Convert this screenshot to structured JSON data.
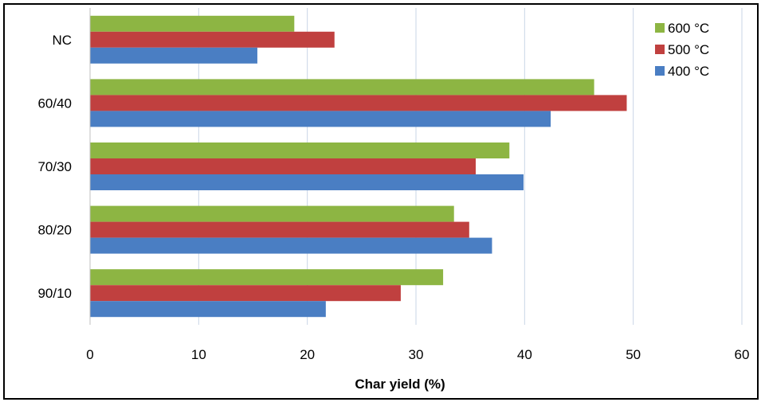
{
  "chart_data": {
    "type": "bar",
    "orientation": "horizontal",
    "categories": [
      "NC",
      "60/40",
      "70/30",
      "80/20",
      "90/10"
    ],
    "series": [
      {
        "name": "600 °C",
        "color": "#8db543",
        "values": [
          18.8,
          46.4,
          38.6,
          33.5,
          32.5
        ]
      },
      {
        "name": "500 °C",
        "color": "#c0403f",
        "values": [
          22.5,
          49.4,
          35.5,
          34.9,
          28.6
        ]
      },
      {
        "name": "400 °C",
        "color": "#4a7ec3",
        "values": [
          15.4,
          42.4,
          39.9,
          37.0,
          21.7
        ]
      }
    ],
    "xlabel": "Char yield (%)",
    "ylabel": "",
    "title": "",
    "xlim": [
      0,
      60
    ],
    "xticks": [
      0,
      10,
      20,
      30,
      40,
      50,
      60
    ],
    "grid": true,
    "legend_position": "top-right"
  }
}
